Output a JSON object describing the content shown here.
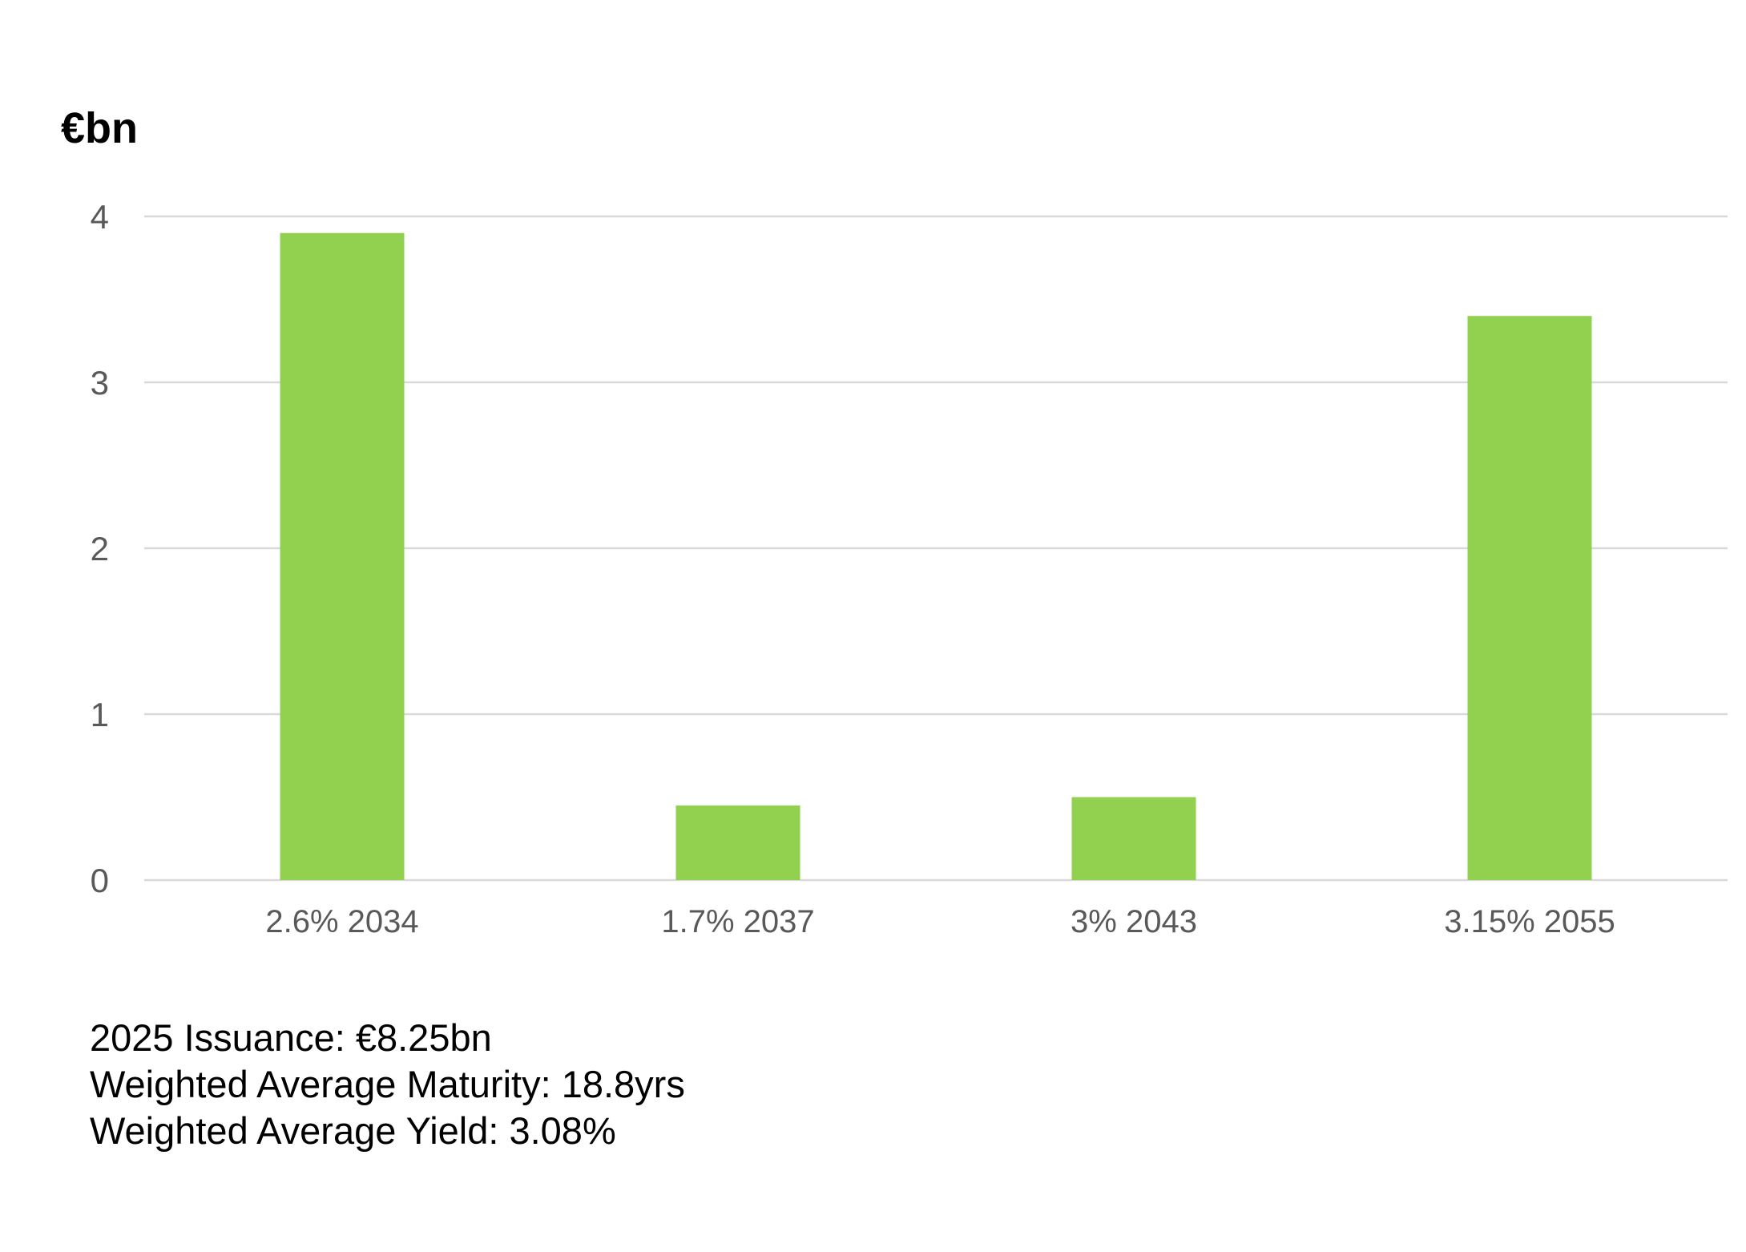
{
  "chart_data": {
    "type": "bar",
    "unit_label": "€bn",
    "categories": [
      "2.6% 2034",
      "1.7% 2037",
      "3% 2043",
      "3.15% 2055"
    ],
    "values": [
      3.9,
      0.45,
      0.5,
      3.4
    ],
    "ylim": [
      0,
      4
    ],
    "yticks": [
      "0",
      "1",
      "2",
      "3",
      "4"
    ],
    "grid": true,
    "colors": {
      "bar": "#92d050"
    }
  },
  "notes": {
    "issuance": "2025 Issuance: €8.25bn",
    "maturity": "Weighted Average Maturity: 18.8yrs",
    "yield": "Weighted Average Yield: 3.08%"
  }
}
